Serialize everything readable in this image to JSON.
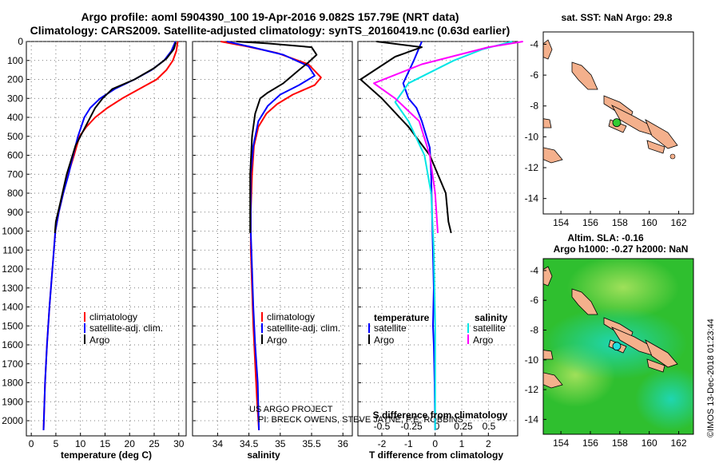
{
  "title_line1": "Argo profile: aoml 5904390_100 19-Apr-2016 9.082S 157.79E (NRT data)",
  "title_line2": "Climatology: CARS2009. Satellite-adjusted climatology: synTS_20160419.nc (0.63d earlier)",
  "side_stamp": "©IMOS 13-Dec-2018 01:23:44",
  "credit_line1": "US ARGO PROJECT",
  "credit_line2": "PI: BRECK OWENS, STEVE JAYNE, P.E. ROBBINS",
  "colors": {
    "climatology": "#ff0000",
    "satellite": "#0000ff",
    "argo": "#000000",
    "sat_salinity": "#00e5e5",
    "argo_salinity": "#ff00ff",
    "land": "#f4b08c",
    "sea_green": "#2fbf2f",
    "sea_teal": "#20d0a0",
    "dot_green": "#33cc33",
    "dot_cyan": "#22dddd"
  },
  "chart_data": [
    {
      "type": "line",
      "title": "",
      "xlabel": "temperature (deg C)",
      "ylabel": "",
      "xlim": [
        -1,
        31.5
      ],
      "ylim": [
        2080,
        0
      ],
      "xticks": [
        "0",
        "5",
        "10",
        "15",
        "20",
        "25",
        "30"
      ],
      "yticks": [
        "0",
        "100",
        "200",
        "300",
        "400",
        "500",
        "600",
        "700",
        "800",
        "900",
        "1000",
        "1100",
        "1200",
        "1300",
        "1400",
        "1500",
        "1600",
        "1700",
        "1800",
        "1900",
        "2000"
      ],
      "legend": [
        "climatology",
        "satellite-adj. clim.",
        "Argo"
      ],
      "series": [
        {
          "name": "climatology",
          "x": [
            29.8,
            29.5,
            28.8,
            27.5,
            25.5,
            22.0,
            18.5,
            15.5,
            13.0,
            11.2,
            9.8,
            8.7,
            7.5,
            6.5,
            5.6,
            4.9,
            4.3,
            3.7,
            3.2,
            2.8,
            2.5
          ],
          "y": [
            0,
            50,
            100,
            150,
            200,
            250,
            300,
            350,
            400,
            450,
            500,
            600,
            700,
            800,
            900,
            1000,
            1200,
            1400,
            1600,
            1800,
            2050
          ]
        },
        {
          "name": "satellite-adj. clim.",
          "x": [
            29.3,
            28.5,
            27.0,
            24.5,
            21.0,
            17.0,
            14.0,
            12.0,
            10.8,
            9.5,
            8.5,
            7.6,
            6.5,
            5.6,
            4.9,
            4.3,
            3.7,
            3.2,
            2.8,
            2.5
          ],
          "y": [
            0,
            50,
            100,
            150,
            200,
            250,
            300,
            350,
            400,
            500,
            600,
            700,
            800,
            900,
            1000,
            1200,
            1400,
            1600,
            1800,
            2050
          ]
        },
        {
          "name": "Argo",
          "x": [
            29.4,
            29.0,
            27.5,
            25.0,
            21.0,
            16.5,
            14.5,
            13.0,
            11.0,
            9.0,
            7.2,
            5.9,
            5.0,
            4.8
          ],
          "y": [
            5,
            40,
            90,
            140,
            200,
            250,
            300,
            350,
            450,
            550,
            700,
            850,
            950,
            1010
          ]
        }
      ]
    },
    {
      "type": "line",
      "title": "",
      "xlabel": "salinity",
      "ylabel": "",
      "xlim": [
        33.6,
        36.15
      ],
      "ylim": [
        2080,
        0
      ],
      "xticks": [
        "34",
        "34.5",
        "35",
        "35.5",
        "36"
      ],
      "legend": [
        "climatology",
        "satellite-adj. clim.",
        "Argo"
      ],
      "series": [
        {
          "name": "climatology",
          "x": [
            34.05,
            34.45,
            34.95,
            35.45,
            35.65,
            35.55,
            35.2,
            34.95,
            34.78,
            34.65,
            34.58,
            34.55,
            34.53,
            34.53,
            34.55,
            34.57,
            34.6,
            34.63,
            34.66
          ],
          "y": [
            0,
            25,
            60,
            120,
            190,
            230,
            280,
            330,
            380,
            450,
            550,
            700,
            900,
            1100,
            1300,
            1500,
            1700,
            1900,
            2050
          ]
        },
        {
          "name": "satellite-adj. clim.",
          "x": [
            34.15,
            34.55,
            35.05,
            35.45,
            35.55,
            35.3,
            35.0,
            34.8,
            34.65,
            34.57,
            34.53,
            34.53,
            34.55,
            34.57,
            34.6,
            34.64,
            34.66
          ],
          "y": [
            0,
            30,
            70,
            130,
            180,
            230,
            280,
            340,
            420,
            550,
            700,
            1000,
            1200,
            1400,
            1600,
            1800,
            2050
          ]
        },
        {
          "name": "Argo",
          "x": [
            34.3,
            34.8,
            35.5,
            35.58,
            35.45,
            35.3,
            35.05,
            34.8,
            34.68,
            34.6,
            34.55,
            34.52,
            34.52
          ],
          "y": [
            0,
            10,
            30,
            70,
            110,
            150,
            220,
            270,
            300,
            380,
            500,
            700,
            1010
          ]
        }
      ]
    },
    {
      "type": "line",
      "title": "S difference from climatology",
      "xlabel": "T difference from climatology",
      "ylabel": "",
      "xlim": [
        -2.9,
        3.1
      ],
      "ylim": [
        2080,
        0
      ],
      "xticks": [
        "-2",
        "-1",
        "0",
        "1",
        "2"
      ],
      "x2ticks": [
        "-0.5",
        "-0.25",
        "0",
        "0.25",
        "0.5"
      ],
      "legend": [
        "temperature",
        "satellite",
        "Argo",
        "salinity",
        "satellite",
        "Argo"
      ],
      "series": [
        {
          "name": "temperature satellite",
          "x": [
            -0.5,
            -0.8,
            -1.2,
            -1.0,
            -0.7,
            -0.5,
            -0.2,
            -0.15,
            -0.1,
            -0.05,
            -0.08,
            -0.05,
            -0.02,
            0.0
          ],
          "y": [
            0,
            100,
            220,
            300,
            350,
            420,
            560,
            700,
            1000,
            1300,
            1500,
            1600,
            1800,
            2050
          ]
        },
        {
          "name": "temperature Argo",
          "x": [
            -2.2,
            -0.5,
            -1.5,
            -2.8,
            -2.0,
            -1.0,
            -0.2,
            0.4,
            0.5,
            0.6
          ],
          "y": [
            0,
            30,
            80,
            200,
            300,
            450,
            600,
            800,
            950,
            1010
          ]
        },
        {
          "name": "salinity satellite",
          "x": [
            2.9,
            1.8,
            0.7,
            -1.0,
            -1.5,
            -1.0,
            -0.4,
            -0.15,
            -0.05,
            0.0,
            0.0
          ],
          "y": [
            0,
            40,
            100,
            220,
            320,
            420,
            600,
            800,
            1100,
            1500,
            2050
          ]
        },
        {
          "name": "salinity Argo",
          "x": [
            3.3,
            2.0,
            -0.5,
            -2.3,
            -1.5,
            -0.6,
            -0.2,
            0.0,
            0.1
          ],
          "y": [
            0,
            30,
            120,
            220,
            300,
            420,
            600,
            800,
            1010
          ]
        }
      ]
    },
    {
      "type": "map",
      "title": "sat. SST: NaN Argo: 29.8",
      "xticks": [
        "154",
        "156",
        "158",
        "160",
        "162"
      ],
      "yticks": [
        "-4",
        "-6",
        "-8",
        "-10",
        "-12",
        "-14"
      ],
      "argo_position": {
        "lon": 157.79,
        "lat": -9.082
      }
    },
    {
      "type": "heatmap",
      "title_line1": "Altim. SLA: -0.16",
      "title_line2": "Argo h1000: -0.27 h2000: NaN",
      "xticks": [
        "154",
        "156",
        "158",
        "160",
        "162"
      ],
      "yticks": [
        "-4",
        "-6",
        "-8",
        "-10",
        "-12",
        "-14"
      ],
      "argo_position": {
        "lon": 157.79,
        "lat": -9.082
      }
    }
  ]
}
